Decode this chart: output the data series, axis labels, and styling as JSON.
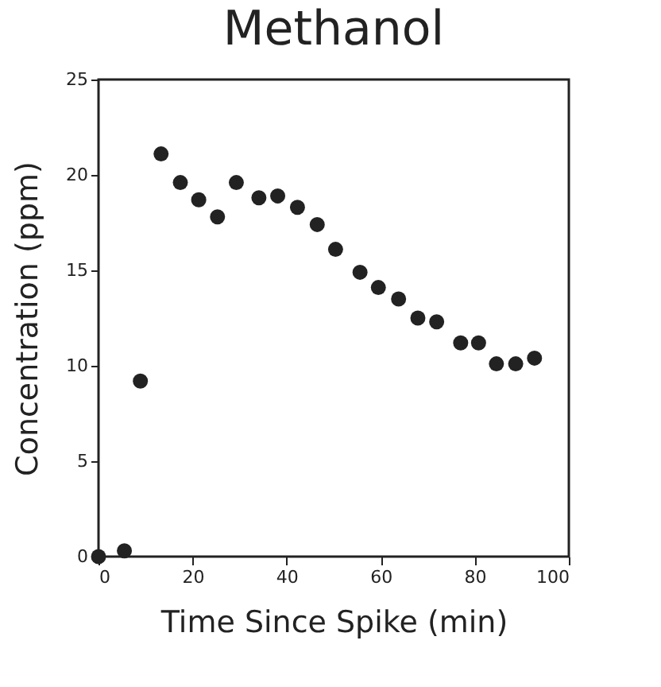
{
  "chart_data": {
    "type": "scatter",
    "title": "Methanol",
    "xlabel": "Time Since Spike (min)",
    "ylabel": "Concentration (ppm)",
    "x": [
      0,
      5.5,
      8.9,
      13.3,
      17.4,
      21.3,
      25.3,
      29.3,
      34.1,
      38.1,
      42.3,
      46.5,
      50.4,
      55.6,
      59.5,
      63.8,
      67.9,
      71.9,
      77.0,
      80.8,
      84.6,
      88.7,
      92.7
    ],
    "series": [
      {
        "color": "#222222",
        "values": [
          0,
          0.3,
          9.2,
          21.1,
          19.6,
          18.7,
          17.8,
          19.6,
          18.8,
          18.9,
          18.3,
          17.4,
          16.1,
          14.9,
          14.1,
          13.5,
          12.5,
          12.3,
          11.2,
          11.2,
          10.1,
          10.1,
          10.4
        ]
      }
    ],
    "xlim": [
      0,
      100
    ],
    "xticks": [
      0,
      20,
      40,
      60,
      80,
      100
    ],
    "ylim": [
      0,
      25
    ],
    "yticks": [
      0,
      5,
      10,
      15,
      20,
      25
    ],
    "marker": "circle",
    "grid": false,
    "legend": false
  }
}
